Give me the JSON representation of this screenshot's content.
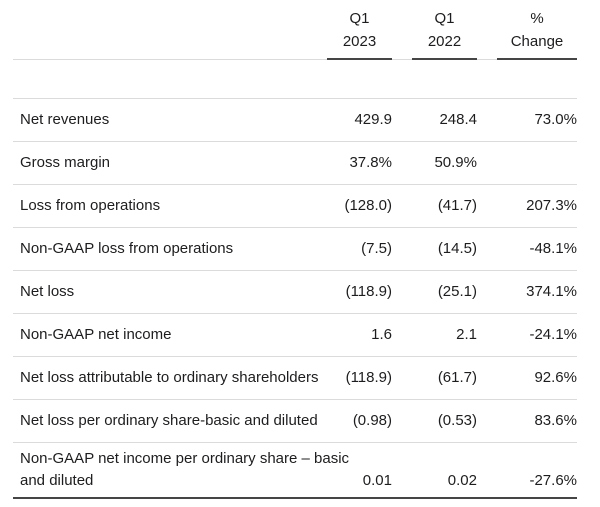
{
  "colors": {
    "text": "#1d1d1f",
    "separator": "#dbdbdb",
    "rule": "#454545",
    "background": "#ffffff"
  },
  "chart_data": {
    "type": "table",
    "columns": [
      "Q1 2023",
      "Q1 2022",
      "% Change"
    ],
    "column_headers": [
      {
        "line1": "Q1",
        "line2": "2023"
      },
      {
        "line1": "Q1",
        "line2": "2022"
      },
      {
        "line1": "%",
        "line2": "Change"
      }
    ],
    "rows": [
      {
        "label": "Net revenues",
        "q1_2023": "429.9",
        "q1_2022": "248.4",
        "pct_change": "73.0%"
      },
      {
        "label": "Gross margin",
        "q1_2023": "37.8%",
        "q1_2022": "50.9%",
        "pct_change": ""
      },
      {
        "label": "Loss from operations",
        "q1_2023": "(128.0)",
        "q1_2022": "(41.7)",
        "pct_change": "207.3%"
      },
      {
        "label": "Non-GAAP loss from operations",
        "q1_2023": "(7.5)",
        "q1_2022": "(14.5)",
        "pct_change": "-48.1%"
      },
      {
        "label": "Net loss",
        "q1_2023": "(118.9)",
        "q1_2022": "(25.1)",
        "pct_change": "374.1%"
      },
      {
        "label": "Non-GAAP net income",
        "q1_2023": "1.6",
        "q1_2022": "2.1",
        "pct_change": "-24.1%"
      },
      {
        "label": "Net loss attributable to ordinary shareholders",
        "q1_2023": "(118.9)",
        "q1_2022": "(61.7)",
        "pct_change": "92.6%"
      },
      {
        "label": "Net loss per ordinary share-basic and diluted",
        "q1_2023": "(0.98)",
        "q1_2022": "(0.53)",
        "pct_change": "83.6%"
      },
      {
        "label": "Non-GAAP net income per ordinary share – basic and diluted",
        "q1_2023": "0.01",
        "q1_2022": "0.02",
        "pct_change": "-27.6%"
      }
    ]
  }
}
